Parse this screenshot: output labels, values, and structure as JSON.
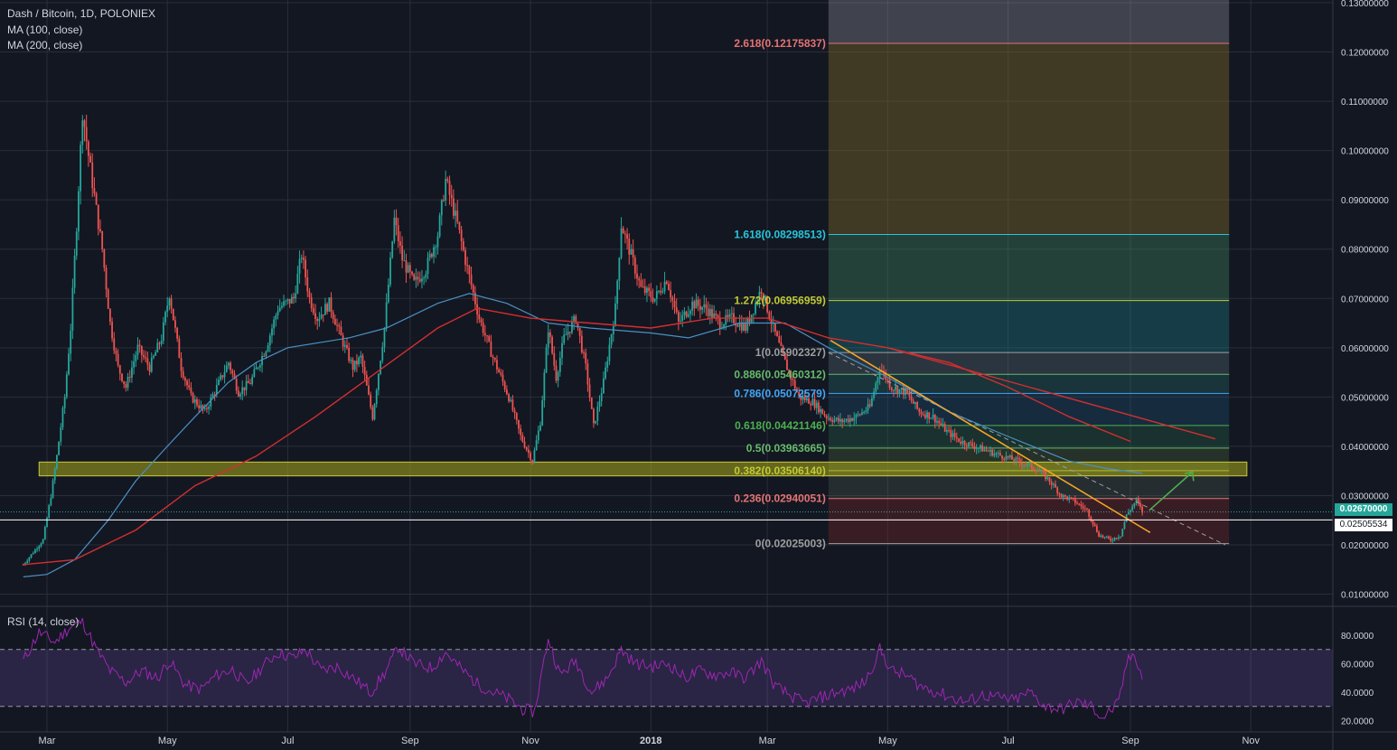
{
  "legend": {
    "title": "Dash / Bitcoin, 1D, POLONIEX",
    "ma1": "MA (100, close)",
    "ma2": "MA (200, close)",
    "rsi": "RSI (14, close)"
  },
  "price_tags": {
    "last": "0.02670000",
    "cross": "0.02505534"
  },
  "colors": {
    "background": "#131722",
    "grid": "#2a2e39",
    "up": "#26a69a",
    "down": "#ef5350",
    "ma100": "#4a90c2",
    "ma200": "#d32f2f",
    "rsi": "#9c27b0",
    "support_zone": "#9aa020",
    "trend_line": "#f5a623",
    "arrow": "#4caf50"
  },
  "chart_data": [
    {
      "type": "candlestick",
      "pair": "Dash / Bitcoin",
      "interval": "1D",
      "exchange": "POLONIEX",
      "y_axis_ticks": [
        "0.13000000",
        "0.12000000",
        "0.11000000",
        "0.10000000",
        "0.09000000",
        "0.08000000",
        "0.07000000",
        "0.06000000",
        "0.05000000",
        "0.04000000",
        "0.03000000",
        "0.02000000",
        "0.01000000"
      ],
      "x_axis_ticks": [
        "Mar",
        "May",
        "Jul",
        "Sep",
        "Nov",
        "2018",
        "Mar",
        "May",
        "Jul",
        "Sep",
        "Nov"
      ],
      "indicators": [
        "MA (100, close)",
        "MA (200, close)"
      ],
      "price_path": [
        [
          "2017-02-17",
          0.016
        ],
        [
          "2017-02-27",
          0.021
        ],
        [
          "2017-03-03",
          0.03
        ],
        [
          "2017-03-06",
          0.038
        ],
        [
          "2017-03-10",
          0.05
        ],
        [
          "2017-03-13",
          0.064
        ],
        [
          "2017-03-16",
          0.085
        ],
        [
          "2017-03-19",
          0.108
        ],
        [
          "2017-03-22",
          0.099
        ],
        [
          "2017-03-26",
          0.088
        ],
        [
          "2017-03-29",
          0.08
        ],
        [
          "2017-04-02",
          0.065
        ],
        [
          "2017-04-06",
          0.056
        ],
        [
          "2017-04-10",
          0.052
        ],
        [
          "2017-04-16",
          0.06
        ],
        [
          "2017-04-22",
          0.056
        ],
        [
          "2017-04-28",
          0.062
        ],
        [
          "2017-05-02",
          0.071
        ],
        [
          "2017-05-08",
          0.056
        ],
        [
          "2017-05-13",
          0.05
        ],
        [
          "2017-05-20",
          0.047
        ],
        [
          "2017-05-26",
          0.052
        ],
        [
          "2017-06-01",
          0.057
        ],
        [
          "2017-06-06",
          0.051
        ],
        [
          "2017-06-12",
          0.053
        ],
        [
          "2017-06-20",
          0.06
        ],
        [
          "2017-06-26",
          0.068
        ],
        [
          "2017-07-04",
          0.07
        ],
        [
          "2017-07-08",
          0.079
        ],
        [
          "2017-07-12",
          0.07
        ],
        [
          "2017-07-16",
          0.066
        ],
        [
          "2017-07-22",
          0.069
        ],
        [
          "2017-07-29",
          0.061
        ],
        [
          "2017-08-03",
          0.056
        ],
        [
          "2017-08-07",
          0.058
        ],
        [
          "2017-08-13",
          0.046
        ],
        [
          "2017-08-19",
          0.064
        ],
        [
          "2017-08-24",
          0.086
        ],
        [
          "2017-08-28",
          0.078
        ],
        [
          "2017-09-03",
          0.073
        ],
        [
          "2017-09-09",
          0.076
        ],
        [
          "2017-09-15",
          0.083
        ],
        [
          "2017-09-19",
          0.094
        ],
        [
          "2017-09-25",
          0.085
        ],
        [
          "2017-09-30",
          0.076
        ],
        [
          "2017-10-06",
          0.066
        ],
        [
          "2017-10-13",
          0.058
        ],
        [
          "2017-10-21",
          0.05
        ],
        [
          "2017-10-27",
          0.042
        ],
        [
          "2017-11-02",
          0.037
        ],
        [
          "2017-11-06",
          0.045
        ],
        [
          "2017-11-10",
          0.064
        ],
        [
          "2017-11-14",
          0.054
        ],
        [
          "2017-11-18",
          0.062
        ],
        [
          "2017-11-24",
          0.066
        ],
        [
          "2017-11-29",
          0.056
        ],
        [
          "2017-12-03",
          0.044
        ],
        [
          "2017-12-08",
          0.053
        ],
        [
          "2017-12-14",
          0.068
        ],
        [
          "2017-12-17",
          0.085
        ],
        [
          "2017-12-21",
          0.08
        ],
        [
          "2017-12-27",
          0.072
        ],
        [
          "2018-01-03",
          0.07
        ],
        [
          "2018-01-09",
          0.074
        ],
        [
          "2018-01-15",
          0.065
        ],
        [
          "2018-01-22",
          0.069
        ],
        [
          "2018-01-29",
          0.068
        ],
        [
          "2018-02-05",
          0.065
        ],
        [
          "2018-02-11",
          0.066
        ],
        [
          "2018-02-18",
          0.064
        ],
        [
          "2018-02-26",
          0.072
        ],
        [
          "2018-03-04",
          0.064
        ],
        [
          "2018-03-10",
          0.057
        ],
        [
          "2018-03-17",
          0.05
        ],
        [
          "2018-03-24",
          0.049
        ],
        [
          "2018-03-31",
          0.046
        ],
        [
          "2018-04-07",
          0.045
        ],
        [
          "2018-04-15",
          0.046
        ],
        [
          "2018-04-22",
          0.048
        ],
        [
          "2018-04-27",
          0.056
        ],
        [
          "2018-05-03",
          0.052
        ],
        [
          "2018-05-10",
          0.051
        ],
        [
          "2018-05-17",
          0.047
        ],
        [
          "2018-05-24",
          0.046
        ],
        [
          "2018-05-31",
          0.043
        ],
        [
          "2018-06-07",
          0.041
        ],
        [
          "2018-06-14",
          0.04
        ],
        [
          "2018-06-21",
          0.039
        ],
        [
          "2018-06-28",
          0.038
        ],
        [
          "2018-07-06",
          0.037
        ],
        [
          "2018-07-12",
          0.036
        ],
        [
          "2018-07-17",
          0.035
        ],
        [
          "2018-07-22",
          0.033
        ],
        [
          "2018-07-28",
          0.03
        ],
        [
          "2018-08-03",
          0.029
        ],
        [
          "2018-08-10",
          0.027
        ],
        [
          "2018-08-16",
          0.022
        ],
        [
          "2018-08-22",
          0.021
        ],
        [
          "2018-08-27",
          0.022
        ],
        [
          "2018-08-30",
          0.026
        ],
        [
          "2018-09-04",
          0.029
        ],
        [
          "2018-09-07",
          0.0267
        ]
      ],
      "ma100_path": [
        [
          "2017-02-17",
          0.0135
        ],
        [
          "2017-03-01",
          0.014
        ],
        [
          "2017-03-15",
          0.017
        ],
        [
          "2017-04-01",
          0.025
        ],
        [
          "2017-04-15",
          0.033
        ],
        [
          "2017-05-01",
          0.04
        ],
        [
          "2017-05-15",
          0.046
        ],
        [
          "2017-06-01",
          0.053
        ],
        [
          "2017-06-15",
          0.057
        ],
        [
          "2017-07-01",
          0.06
        ],
        [
          "2017-08-01",
          0.062
        ],
        [
          "2017-08-20",
          0.064
        ],
        [
          "2017-09-15",
          0.069
        ],
        [
          "2017-10-01",
          0.071
        ],
        [
          "2017-10-20",
          0.069
        ],
        [
          "2017-11-10",
          0.065
        ],
        [
          "2017-12-01",
          0.064
        ],
        [
          "2018-01-01",
          0.063
        ],
        [
          "2018-01-20",
          0.062
        ],
        [
          "2018-02-15",
          0.065
        ],
        [
          "2018-03-10",
          0.065
        ],
        [
          "2018-04-01",
          0.06
        ],
        [
          "2018-05-01",
          0.054
        ],
        [
          "2018-06-01",
          0.047
        ],
        [
          "2018-07-01",
          0.042
        ],
        [
          "2018-08-01",
          0.037
        ],
        [
          "2018-08-20",
          0.0355
        ],
        [
          "2018-09-07",
          0.0345
        ]
      ],
      "ma200_path": [
        [
          "2017-02-17",
          0.016
        ],
        [
          "2017-03-15",
          0.017
        ],
        [
          "2017-04-15",
          0.023
        ],
        [
          "2017-05-15",
          0.032
        ],
        [
          "2017-06-15",
          0.038
        ],
        [
          "2017-07-15",
          0.046
        ],
        [
          "2017-08-15",
          0.055
        ],
        [
          "2017-09-15",
          0.064
        ],
        [
          "2017-10-05",
          0.068
        ],
        [
          "2017-11-01",
          0.066
        ],
        [
          "2017-12-01",
          0.065
        ],
        [
          "2018-01-01",
          0.064
        ],
        [
          "2018-02-01",
          0.066
        ],
        [
          "2018-03-01",
          0.066
        ],
        [
          "2018-04-01",
          0.062
        ],
        [
          "2018-05-01",
          0.06
        ],
        [
          "2018-06-01",
          0.057
        ],
        [
          "2018-07-01",
          0.052
        ],
        [
          "2018-08-01",
          0.046
        ],
        [
          "2018-09-01",
          0.041
        ]
      ],
      "fibonacci": {
        "range": [
          "2018-04-01",
          "2018-10-21"
        ],
        "levels": [
          {
            "ratio": "2.618",
            "label": "2.618(0.12175837)",
            "value": 0.12175837,
            "color": "#e57373",
            "fill": "rgba(120,123,134,0.35)"
          },
          {
            "ratio": "1.618",
            "label": "1.618(0.08298513)",
            "value": 0.08298513,
            "color": "#26c6da",
            "fill": "rgba(120,100,40,0.45)"
          },
          {
            "ratio": "1.272",
            "label": "1.272(0.06956959)",
            "value": 0.06956959,
            "color": "#c0ca33",
            "fill": "rgba(60,130,90,0.40)"
          },
          {
            "ratio": "1",
            "label": "1(0.05902327)",
            "value": 0.05902327,
            "color": "#9e9e9e",
            "fill": "rgba(30,130,140,0.35)"
          },
          {
            "ratio": "0.886",
            "label": "0.886(0.05460312)",
            "value": 0.05460312,
            "color": "#66bb6a",
            "fill": "rgba(90,110,120,0.35)"
          },
          {
            "ratio": "0.786",
            "label": "0.786(0.05072579)",
            "value": 0.05072579,
            "color": "#42a5f5",
            "fill": "rgba(40,120,120,0.30)"
          },
          {
            "ratio": "0.618",
            "label": "0.618(0.04421146)",
            "value": 0.04421146,
            "color": "#4caf50",
            "fill": "rgba(30,90,130,0.30)"
          },
          {
            "ratio": "0.5",
            "label": "0.5(0.03963665)",
            "value": 0.03963665,
            "color": "#66bb6a",
            "fill": "rgba(40,110,80,0.30)"
          },
          {
            "ratio": "0.382",
            "label": "0.382(0.03506140)",
            "value": 0.0350614,
            "color": "#c0ca33",
            "fill": "rgba(80,110,60,0.30)"
          },
          {
            "ratio": "0.236",
            "label": "0.236(0.02940051)",
            "value": 0.02940051,
            "color": "#e57373",
            "fill": "rgba(90,110,90,0.25)"
          },
          {
            "ratio": "0",
            "label": "0(0.02025003)",
            "value": 0.02025003,
            "color": "#9e9e9e",
            "fill": "rgba(130,40,40,0.35)"
          }
        ]
      },
      "support_zone": {
        "from": "2017-02-25",
        "to": "2018-10-30",
        "low": 0.034,
        "high": 0.0368
      },
      "trend_line": [
        [
          "2018-04-02",
          0.0615
        ],
        [
          "2018-09-11",
          0.0225
        ]
      ],
      "dashed_line": [
        [
          "2018-04-01",
          0.059
        ],
        [
          "2018-10-19",
          0.02
        ]
      ],
      "ma_line_end": [
        [
          "2018-09-15",
          0.033
        ]
      ],
      "arrow": [
        [
          "2018-09-05",
          0.027
        ],
        [
          "2018-09-27",
          0.0348
        ]
      ],
      "horizontal_lines": [
        0.0267,
        0.02505534
      ]
    },
    {
      "type": "line",
      "name": "RSI (14, close)",
      "y_axis_ticks": [
        "80.0000",
        "60.0000",
        "40.0000",
        "20.0000"
      ],
      "bands": [
        70,
        30
      ],
      "rsi_path": [
        [
          "2017-02-17",
          62
        ],
        [
          "2017-02-25",
          82
        ],
        [
          "2017-03-05",
          75
        ],
        [
          "2017-03-12",
          85
        ],
        [
          "2017-03-19",
          90
        ],
        [
          "2017-03-26",
          70
        ],
        [
          "2017-04-02",
          55
        ],
        [
          "2017-04-10",
          47
        ],
        [
          "2017-04-18",
          55
        ],
        [
          "2017-04-26",
          50
        ],
        [
          "2017-05-02",
          62
        ],
        [
          "2017-05-10",
          45
        ],
        [
          "2017-05-18",
          42
        ],
        [
          "2017-05-26",
          52
        ],
        [
          "2017-06-03",
          56
        ],
        [
          "2017-06-10",
          45
        ],
        [
          "2017-06-18",
          58
        ],
        [
          "2017-06-26",
          68
        ],
        [
          "2017-07-04",
          64
        ],
        [
          "2017-07-10",
          70
        ],
        [
          "2017-07-18",
          55
        ],
        [
          "2017-07-26",
          58
        ],
        [
          "2017-08-03",
          50
        ],
        [
          "2017-08-12",
          40
        ],
        [
          "2017-08-20",
          55
        ],
        [
          "2017-08-26",
          72
        ],
        [
          "2017-09-03",
          60
        ],
        [
          "2017-09-12",
          57
        ],
        [
          "2017-09-19",
          68
        ],
        [
          "2017-09-27",
          56
        ],
        [
          "2017-10-05",
          46
        ],
        [
          "2017-10-13",
          40
        ],
        [
          "2017-10-21",
          35
        ],
        [
          "2017-10-28",
          28
        ],
        [
          "2017-11-03",
          26
        ],
        [
          "2017-11-10",
          78
        ],
        [
          "2017-11-16",
          52
        ],
        [
          "2017-11-24",
          62
        ],
        [
          "2017-12-02",
          40
        ],
        [
          "2017-12-10",
          50
        ],
        [
          "2017-12-17",
          70
        ],
        [
          "2017-12-24",
          60
        ],
        [
          "2018-01-02",
          58
        ],
        [
          "2018-01-10",
          60
        ],
        [
          "2018-01-18",
          50
        ],
        [
          "2018-01-26",
          55
        ],
        [
          "2018-02-03",
          52
        ],
        [
          "2018-02-10",
          54
        ],
        [
          "2018-02-18",
          50
        ],
        [
          "2018-02-26",
          62
        ],
        [
          "2018-03-05",
          44
        ],
        [
          "2018-03-12",
          38
        ],
        [
          "2018-03-20",
          32
        ],
        [
          "2018-03-28",
          36
        ],
        [
          "2018-04-05",
          40
        ],
        [
          "2018-04-13",
          42
        ],
        [
          "2018-04-20",
          48
        ],
        [
          "2018-04-27",
          70
        ],
        [
          "2018-05-03",
          55
        ],
        [
          "2018-05-10",
          52
        ],
        [
          "2018-05-18",
          44
        ],
        [
          "2018-05-26",
          40
        ],
        [
          "2018-06-03",
          36
        ],
        [
          "2018-06-10",
          33
        ],
        [
          "2018-06-18",
          38
        ],
        [
          "2018-06-26",
          36
        ],
        [
          "2018-07-04",
          34
        ],
        [
          "2018-07-12",
          40
        ],
        [
          "2018-07-20",
          30
        ],
        [
          "2018-07-28",
          28
        ],
        [
          "2018-08-05",
          33
        ],
        [
          "2018-08-12",
          30
        ],
        [
          "2018-08-18",
          22
        ],
        [
          "2018-08-26",
          32
        ],
        [
          "2018-08-30",
          60
        ],
        [
          "2018-09-03",
          68
        ],
        [
          "2018-09-07",
          50
        ]
      ]
    }
  ]
}
